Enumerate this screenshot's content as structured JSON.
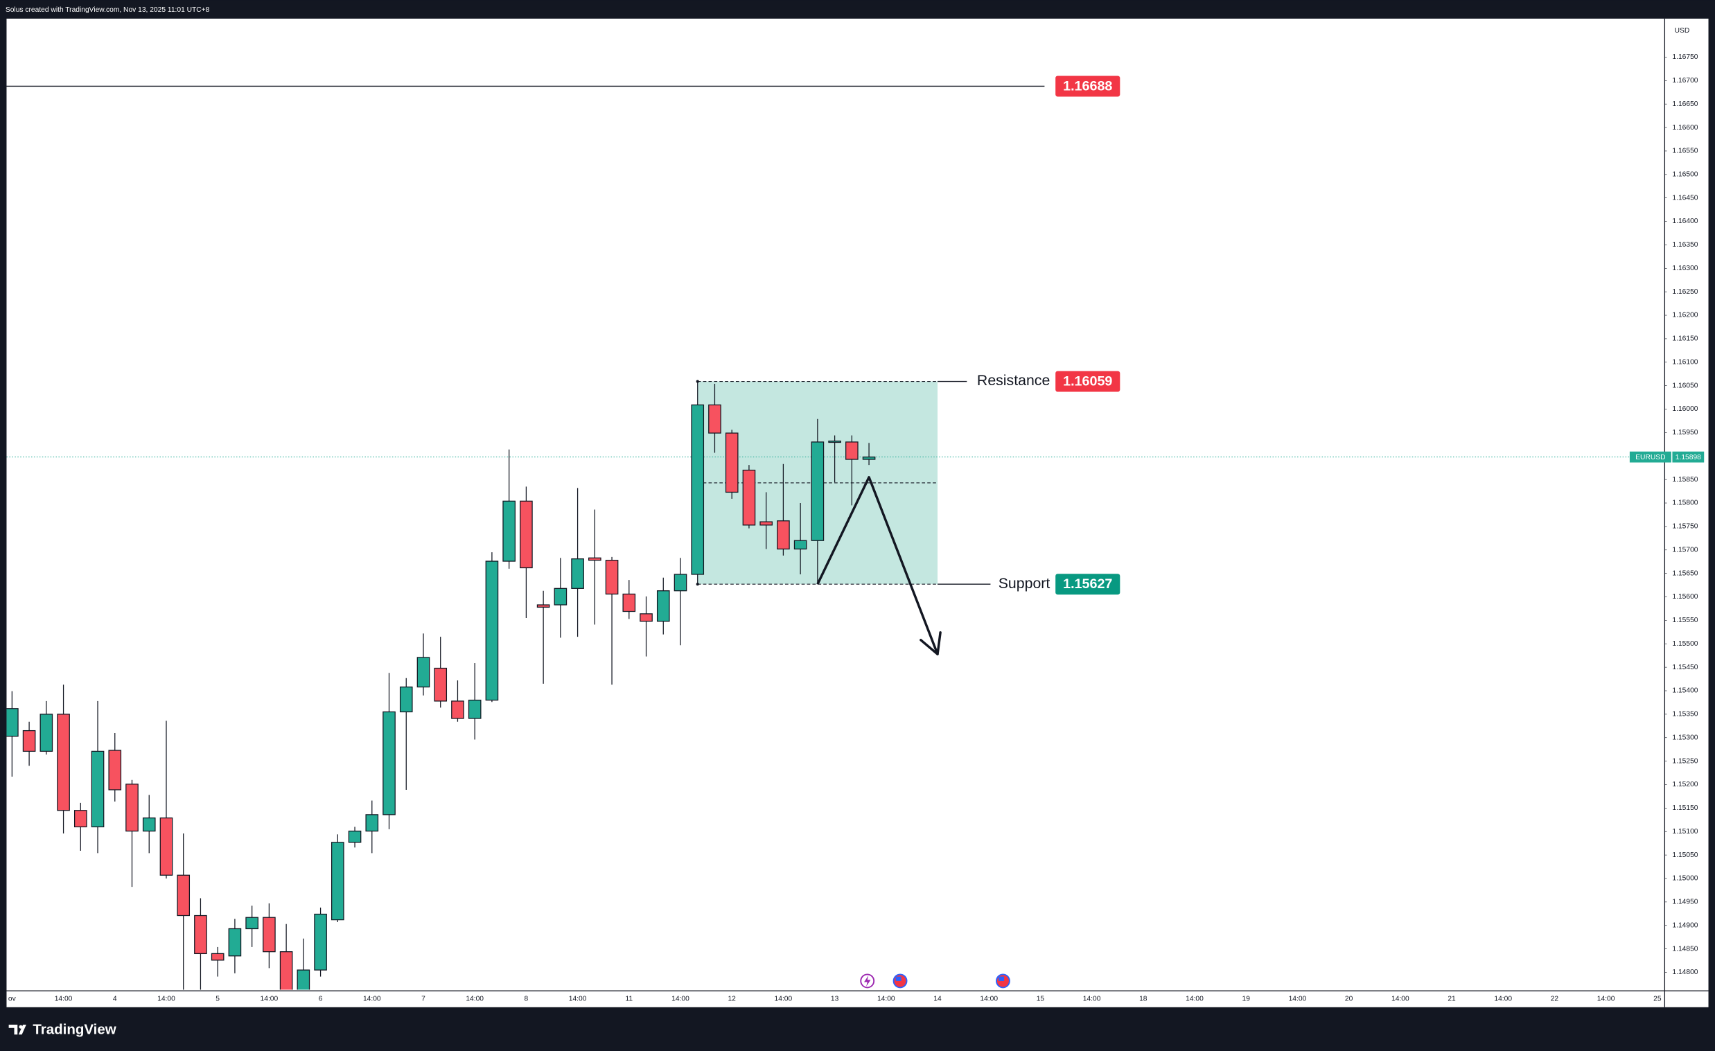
{
  "header": "Solus created with TradingView.com, Nov 13, 2025 11:01 UTC+8",
  "footer": "TradingView",
  "chart_data": {
    "type": "candlestick",
    "currency": "USD",
    "up_color": "#22ab94",
    "down_color": "#f7525f",
    "categories": [
      "ov",
      null,
      null,
      "14:00",
      null,
      null,
      "4",
      null,
      null,
      "14:00",
      null,
      null,
      "5",
      null,
      null,
      "14:00",
      null,
      null,
      "6",
      null,
      null,
      "14:00",
      null,
      null,
      "7",
      null,
      null,
      "14:00",
      null,
      null,
      "8",
      null,
      null,
      "14:00",
      null,
      null,
      "11",
      null,
      null,
      "14:00",
      null,
      null,
      "12",
      null,
      null,
      "14:00",
      null,
      null,
      "13",
      null,
      null,
      "14:00",
      null,
      null,
      "14",
      null,
      null,
      "14:00",
      null,
      null,
      "15",
      null,
      null,
      "14:00",
      null,
      null,
      "18",
      null,
      null,
      "14:00",
      null,
      null,
      "19",
      null,
      null,
      "14:00",
      null,
      null,
      "20",
      null,
      null,
      "14:00",
      null,
      null,
      "21",
      null,
      null,
      "14:00",
      null,
      null,
      "22",
      null,
      null,
      "14:00",
      null,
      null,
      "25"
    ],
    "open": [
      1.15303,
      1.15315,
      1.15271,
      1.1535,
      1.15145,
      1.1511,
      1.15273,
      1.15201,
      1.15101,
      1.15129,
      1.15007,
      1.14921,
      1.1484,
      1.14835,
      1.14893,
      1.14917,
      1.14844,
      1.1476,
      1.14805,
      1.14912,
      1.15077,
      1.15101,
      1.15136,
      1.15355,
      1.15408,
      1.15448,
      1.15378,
      1.15341,
      1.1538,
      1.15676,
      1.15804,
      1.15583,
      1.15583,
      1.15618,
      1.15683,
      1.15678,
      1.15606,
      1.15564,
      1.15548,
      1.15613,
      1.15648,
      1.16009,
      1.15949,
      1.1587,
      1.1576,
      1.15762,
      1.15702,
      1.1572,
      1.1593,
      1.1593,
      1.15893,
      null,
      null,
      null,
      null,
      null,
      null,
      null,
      null,
      null,
      null,
      null,
      null,
      null,
      null,
      null,
      null,
      null,
      null,
      null,
      null,
      null,
      null,
      null,
      null,
      null,
      null,
      null,
      null,
      null,
      null,
      null,
      null,
      null,
      null,
      null,
      null,
      null,
      null,
      null,
      null,
      null,
      null,
      null,
      null,
      null,
      null
    ],
    "high": [
      1.15399,
      1.15334,
      1.15378,
      1.15413,
      1.15161,
      1.15378,
      1.1531,
      1.1521,
      1.15178,
      1.15336,
      1.15096,
      1.14958,
      1.14854,
      1.14914,
      1.14942,
      1.14947,
      1.14903,
      1.14872,
      1.14938,
      1.15094,
      1.1511,
      1.15166,
      1.15438,
      1.15427,
      1.15522,
      1.15515,
      1.15422,
      1.15459,
      1.15695,
      1.15914,
      1.15835,
      1.15613,
      1.15683,
      1.15832,
      1.15786,
      1.15685,
      1.15636,
      1.15601,
      1.15641,
      1.15683,
      1.16059,
      1.16054,
      1.15956,
      1.15881,
      1.15823,
      1.15883,
      1.158,
      1.15979,
      1.15944,
      1.15944,
      1.15928,
      null,
      null,
      null,
      null,
      null,
      null,
      null,
      null,
      null,
      null,
      null,
      null,
      null,
      null,
      null,
      null,
      null,
      null,
      null,
      null,
      null,
      null,
      null,
      null,
      null,
      null,
      null,
      null,
      null,
      null,
      null,
      null,
      null,
      null,
      null,
      null,
      null,
      null,
      null,
      null,
      null,
      null,
      null,
      null,
      null,
      null
    ],
    "low": [
      1.15217,
      1.1524,
      1.15264,
      1.15096,
      1.15059,
      1.15054,
      1.15164,
      1.14982,
      1.15054,
      1.15,
      1.1475,
      1.1475,
      1.14791,
      1.14798,
      1.14854,
      1.14809,
      1.1474,
      1.1474,
      1.14791,
      1.14907,
      1.15066,
      1.15054,
      1.15105,
      1.15189,
      1.1539,
      1.15364,
      1.15334,
      1.15296,
      1.15376,
      1.1566,
      1.15555,
      1.15415,
      1.15513,
      1.15515,
      1.15541,
      1.15413,
      1.15553,
      1.15473,
      1.1552,
      1.15497,
      1.15625,
      1.15907,
      1.15809,
      1.15746,
      1.15702,
      1.15688,
      1.15648,
      1.15627,
      1.15844,
      1.15795,
      1.15881,
      null,
      null,
      null,
      null,
      null,
      null,
      null,
      null,
      null,
      null,
      null,
      null,
      null,
      null,
      null,
      null,
      null,
      null,
      null,
      null,
      null,
      null,
      null,
      null,
      null,
      null,
      null,
      null,
      null,
      null,
      null,
      null,
      null,
      null,
      null,
      null,
      null,
      null,
      null,
      null,
      null,
      null,
      null,
      null,
      null,
      null
    ],
    "close": [
      1.15362,
      1.15271,
      1.1535,
      1.15145,
      1.1511,
      1.15271,
      1.15189,
      1.15101,
      1.15129,
      1.15007,
      1.14921,
      1.1484,
      1.14826,
      1.14893,
      1.14917,
      1.14844,
      1.1476,
      1.14805,
      1.14924,
      1.15077,
      1.15101,
      1.15136,
      1.15355,
      1.15408,
      1.15471,
      1.15378,
      1.15341,
      1.1538,
      1.15676,
      1.15804,
      1.15662,
      1.15578,
      1.15618,
      1.15681,
      1.15678,
      1.15606,
      1.15569,
      1.15548,
      1.15613,
      1.15648,
      1.16009,
      1.15949,
      1.15823,
      1.15753,
      1.15753,
      1.15702,
      1.1572,
      1.1593,
      1.15932,
      1.15893,
      1.15898,
      null,
      null,
      null,
      null,
      null,
      null,
      null,
      null,
      null,
      null,
      null,
      null,
      null,
      null,
      null,
      null,
      null,
      null,
      null,
      null,
      null,
      null,
      null,
      null,
      null,
      null,
      null,
      null,
      null,
      null,
      null,
      null,
      null,
      null,
      null,
      null,
      null,
      null,
      null,
      null,
      null,
      null,
      null,
      null,
      null,
      null
    ],
    "ylim": [
      1.14763,
      1.16832
    ],
    "yticks": [
      {
        "value": 1.148,
        "label": "1.14800"
      },
      {
        "value": 1.1485,
        "label": "1.14850"
      },
      {
        "value": 1.149,
        "label": "1.14900"
      },
      {
        "value": 1.1495,
        "label": "1.14950"
      },
      {
        "value": 1.15,
        "label": "1.15000"
      },
      {
        "value": 1.1505,
        "label": "1.15050"
      },
      {
        "value": 1.151,
        "label": "1.15100"
      },
      {
        "value": 1.1515,
        "label": "1.15150"
      },
      {
        "value": 1.152,
        "label": "1.15200"
      },
      {
        "value": 1.1525,
        "label": "1.15250"
      },
      {
        "value": 1.153,
        "label": "1.15300"
      },
      {
        "value": 1.1535,
        "label": "1.15350"
      },
      {
        "value": 1.154,
        "label": "1.15400"
      },
      {
        "value": 1.1545,
        "label": "1.15450"
      },
      {
        "value": 1.155,
        "label": "1.15500"
      },
      {
        "value": 1.1555,
        "label": "1.15550"
      },
      {
        "value": 1.156,
        "label": "1.15600"
      },
      {
        "value": 1.1565,
        "label": "1.15650"
      },
      {
        "value": 1.157,
        "label": "1.15700"
      },
      {
        "value": 1.1575,
        "label": "1.15750"
      },
      {
        "value": 1.158,
        "label": "1.15800"
      },
      {
        "value": 1.1585,
        "label": "1.15850"
      },
      {
        "value": 1.159,
        "label": "1.15900"
      },
      {
        "value": 1.1595,
        "label": "1.15950"
      },
      {
        "value": 1.16,
        "label": "1.16000"
      },
      {
        "value": 1.1605,
        "label": "1.16050"
      },
      {
        "value": 1.161,
        "label": "1.16100"
      },
      {
        "value": 1.1615,
        "label": "1.16150"
      },
      {
        "value": 1.162,
        "label": "1.16200"
      },
      {
        "value": 1.1625,
        "label": "1.16250"
      },
      {
        "value": 1.163,
        "label": "1.16300"
      },
      {
        "value": 1.1635,
        "label": "1.16350"
      },
      {
        "value": 1.164,
        "label": "1.16400"
      },
      {
        "value": 1.1645,
        "label": "1.16450"
      },
      {
        "value": 1.165,
        "label": "1.16500"
      },
      {
        "value": 1.1655,
        "label": "1.16550"
      },
      {
        "value": 1.166,
        "label": "1.16600"
      },
      {
        "value": 1.1665,
        "label": "1.16650"
      },
      {
        "value": 1.167,
        "label": "1.16700"
      },
      {
        "value": 1.1675,
        "label": "1.16750"
      }
    ],
    "last_price": {
      "symbol": "EURUSD",
      "value": 1.15898
    },
    "levels": [
      {
        "value": 1.16688,
        "color": "#f23645"
      },
      {
        "name": "Resistance",
        "value": 1.16059,
        "color": "#f23645"
      },
      {
        "name": "Support",
        "value": 1.15627,
        "color": "#089981"
      }
    ],
    "zone": {
      "from": 40,
      "to": 54,
      "color": "#c4e7e0"
    },
    "arrow": {
      "x": [
        47,
        50,
        54
      ],
      "y": [
        1.15627,
        1.15855,
        1.15478
      ]
    }
  }
}
